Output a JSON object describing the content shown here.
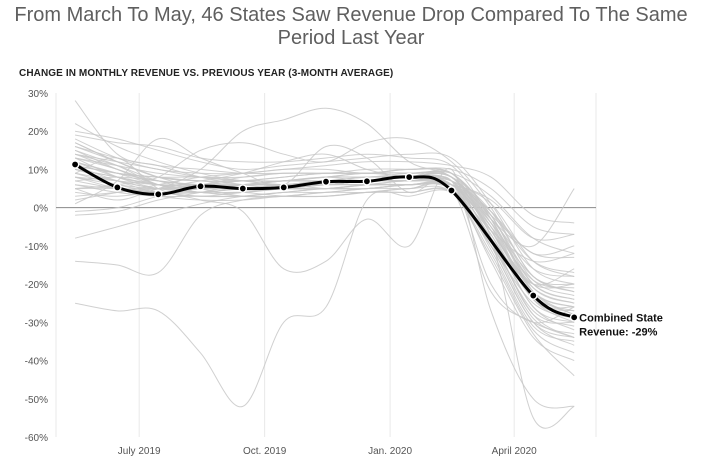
{
  "chart_data": {
    "type": "line",
    "title": "From March To May, 46 States Saw Revenue Drop Compared To The Same Period Last Year",
    "subtitle": "CHANGE IN MONTHLY REVENUE VS. PREVIOUS YEAR (3-MONTH AVERAGE)",
    "xlabel": "",
    "ylabel": "",
    "x_months": [
      "2019-05",
      "2019-06",
      "2019-07",
      "2019-08",
      "2019-09",
      "2019-10",
      "2019-11",
      "2019-12",
      "2020-01",
      "2020-02",
      "2020-03",
      "2020-04",
      "2020-05"
    ],
    "x_ticks": [
      {
        "month": "2019-07",
        "label": "July 2019"
      },
      {
        "month": "2019-10",
        "label": "Oct. 2019"
      },
      {
        "month": "2020-01",
        "label": "Jan. 2020"
      },
      {
        "month": "2020-04",
        "label": "April 2020"
      }
    ],
    "y_ticks": [
      "30%",
      "20%",
      "10%",
      "0%",
      "-10%",
      "-20%",
      "-30%",
      "-40%",
      "-50%",
      "-60%"
    ],
    "ylim": [
      -60,
      30
    ],
    "grid": "vertical-at-x-ticks",
    "series": [
      {
        "name": "Combined State",
        "highlight": true,
        "color": "#000000",
        "markers": true,
        "points": [
          {
            "x": "2019-05-15",
            "y": 11.3
          },
          {
            "x": "2019-06-15",
            "y": 5.3
          },
          {
            "x": "2019-07-15",
            "y": 3.5
          },
          {
            "x": "2019-08-15",
            "y": 5.6
          },
          {
            "x": "2019-09-15",
            "y": 5.0
          },
          {
            "x": "2019-10-15",
            "y": 5.3
          },
          {
            "x": "2019-11-15",
            "y": 6.8
          },
          {
            "x": "2019-12-15",
            "y": 6.9
          },
          {
            "x": "2020-01-15",
            "y": 8.0
          },
          {
            "x": "2020-02-15",
            "y": 4.5
          },
          {
            "x": "2020-04-15",
            "y": -23.0
          },
          {
            "x": "2020-05-15",
            "y": -28.7
          }
        ],
        "end_label_line1": "Combined State",
        "end_label_line2": "Revenue: -29%"
      }
    ],
    "state_series_color": "#c8c8c8",
    "state_series": [
      [
        28,
        14,
        11,
        8,
        6,
        5,
        5,
        6,
        6,
        5,
        -10,
        -30,
        -36
      ],
      [
        22,
        16,
        12,
        9,
        7,
        6,
        6,
        7,
        7,
        6,
        -6,
        -26,
        -30
      ],
      [
        17,
        12,
        8,
        7,
        6,
        6,
        6,
        7,
        7,
        6,
        -2,
        -22,
        -28
      ],
      [
        14,
        11,
        7,
        5,
        6,
        6,
        5,
        5,
        6,
        6,
        -4,
        -20,
        -24
      ],
      [
        19,
        17,
        16,
        13,
        12,
        12,
        13,
        14,
        13,
        11,
        -3,
        -24,
        -26
      ],
      [
        12,
        9,
        6,
        5,
        5,
        5,
        5,
        6,
        6,
        6,
        -8,
        -28,
        -34
      ],
      [
        15,
        10,
        6,
        4,
        4,
        3,
        3,
        4,
        4,
        4,
        -12,
        -32,
        -38
      ],
      [
        10,
        8,
        6,
        5,
        6,
        7,
        8,
        7,
        8,
        8,
        -4,
        -18,
        -22
      ],
      [
        13,
        8,
        5,
        4,
        3,
        3,
        4,
        4,
        5,
        5,
        -14,
        -34,
        -40
      ],
      [
        9,
        7,
        5,
        5,
        6,
        7,
        7,
        7,
        8,
        8,
        -6,
        -22,
        -28
      ],
      [
        20,
        18,
        15,
        12,
        10,
        11,
        12,
        13,
        14,
        13,
        1,
        -16,
        -20
      ],
      [
        11,
        7,
        4,
        4,
        5,
        5,
        6,
        6,
        6,
        5,
        -9,
        -27,
        -31
      ],
      [
        16,
        12,
        8,
        5,
        3,
        3,
        3,
        4,
        4,
        4,
        -10,
        -25,
        -29
      ],
      [
        18,
        13,
        10,
        9,
        9,
        10,
        10,
        9,
        10,
        9,
        -3,
        -21,
        -25
      ],
      [
        8,
        6,
        5,
        6,
        8,
        9,
        9,
        10,
        10,
        9,
        -2,
        -19,
        -23
      ],
      [
        12,
        9,
        8,
        8,
        7,
        6,
        7,
        8,
        8,
        8,
        -5,
        -24,
        -30
      ],
      [
        14,
        10,
        7,
        6,
        6,
        7,
        7,
        8,
        8,
        7,
        -7,
        -26,
        -32
      ],
      [
        10,
        8,
        6,
        6,
        6,
        6,
        6,
        7,
        7,
        7,
        -8,
        -20,
        -16
      ],
      [
        7,
        8,
        7,
        6,
        6,
        7,
        8,
        9,
        8,
        7,
        -1,
        -12,
        -10
      ],
      [
        15,
        11,
        6,
        4,
        4,
        5,
        5,
        6,
        7,
        6,
        -11,
        -31,
        -35
      ],
      [
        13,
        10,
        6,
        4,
        4,
        5,
        6,
        7,
        8,
        9,
        -6,
        -20,
        -20
      ],
      [
        17,
        12,
        8,
        7,
        7,
        8,
        9,
        9,
        9,
        8,
        -4,
        -24,
        -27
      ],
      [
        9,
        6,
        4,
        3,
        4,
        5,
        5,
        6,
        7,
        6,
        -6,
        -23,
        -27
      ],
      [
        11,
        9,
        7,
        6,
        7,
        7,
        8,
        9,
        9,
        8,
        -1,
        -18,
        -22
      ],
      [
        12,
        8,
        6,
        6,
        6,
        6,
        7,
        7,
        8,
        7,
        -5,
        -22,
        -26
      ],
      [
        6,
        5,
        5,
        5,
        5,
        6,
        6,
        6,
        6,
        6,
        -3,
        -16,
        -18
      ],
      [
        16,
        13,
        11,
        10,
        9,
        9,
        9,
        9,
        10,
        9,
        -2,
        -20,
        -24
      ],
      [
        10,
        7,
        5,
        5,
        6,
        6,
        7,
        7,
        7,
        6,
        -8,
        -28,
        -30
      ],
      [
        14,
        12,
        10,
        8,
        7,
        7,
        7,
        8,
        8,
        7,
        -9,
        -29,
        -33
      ],
      [
        8,
        7,
        6,
        6,
        5,
        6,
        6,
        7,
        7,
        6,
        -10,
        -30,
        -34
      ],
      [
        3,
        4,
        5,
        6,
        7,
        8,
        9,
        9,
        10,
        10,
        5,
        -5,
        -7
      ],
      [
        2,
        4,
        6,
        8,
        9,
        10,
        11,
        12,
        12,
        11,
        8,
        -2,
        -4
      ],
      [
        -2,
        -1,
        2,
        4,
        6,
        7,
        8,
        8,
        9,
        9,
        3,
        -8,
        -12
      ],
      [
        -8,
        -5,
        -2,
        1,
        3,
        4,
        5,
        5,
        6,
        6,
        1,
        -14,
        -18
      ],
      [
        -1,
        0,
        3,
        5,
        6,
        6,
        7,
        7,
        7,
        7,
        -2,
        -12,
        -13
      ],
      [
        -14,
        -15,
        -17,
        -2,
        2,
        3,
        4,
        5,
        6,
        6,
        2,
        -8,
        -7
      ],
      [
        -25,
        -27,
        -27,
        -38,
        -52,
        -30,
        -26,
        2,
        3,
        4,
        -8,
        -55,
        -52
      ],
      [
        4,
        3,
        5,
        10,
        20,
        23,
        26,
        22,
        12,
        8,
        -3,
        -22,
        -26
      ],
      [
        5,
        6,
        8,
        15,
        17,
        14,
        12,
        17,
        18,
        12,
        0,
        -18,
        -20
      ],
      [
        9,
        13,
        5,
        2,
        -1,
        -16,
        -14,
        -3,
        -10,
        10,
        -27,
        -50,
        -52
      ],
      [
        1,
        7,
        18,
        13,
        9,
        6,
        16,
        13,
        4,
        7,
        -20,
        -30,
        -26
      ],
      [
        5,
        2,
        5,
        7,
        9,
        12,
        14,
        10,
        8,
        9,
        -3,
        -10,
        5
      ],
      [
        12,
        5,
        4,
        3,
        3,
        4,
        4,
        5,
        5,
        5,
        -22,
        -30,
        -34
      ],
      [
        6,
        4,
        3,
        3,
        3,
        4,
        5,
        5,
        6,
        5,
        -6,
        -14,
        -12
      ],
      [
        8,
        5,
        3,
        2,
        2,
        3,
        3,
        4,
        5,
        4,
        -13,
        -33,
        -44
      ],
      [
        7,
        5,
        4,
        4,
        5,
        5,
        6,
        6,
        6,
        6,
        -5,
        -19,
        -21
      ],
      [
        11,
        9,
        8,
        7,
        7,
        7,
        8,
        8,
        8,
        8,
        -6,
        -21,
        -25
      ],
      [
        13,
        11,
        9,
        8,
        8,
        9,
        9,
        9,
        9,
        8,
        -7,
        -24,
        -29
      ],
      [
        5,
        5,
        4,
        4,
        5,
        6,
        6,
        7,
        7,
        7,
        -1,
        -14,
        -17
      ]
    ]
  }
}
